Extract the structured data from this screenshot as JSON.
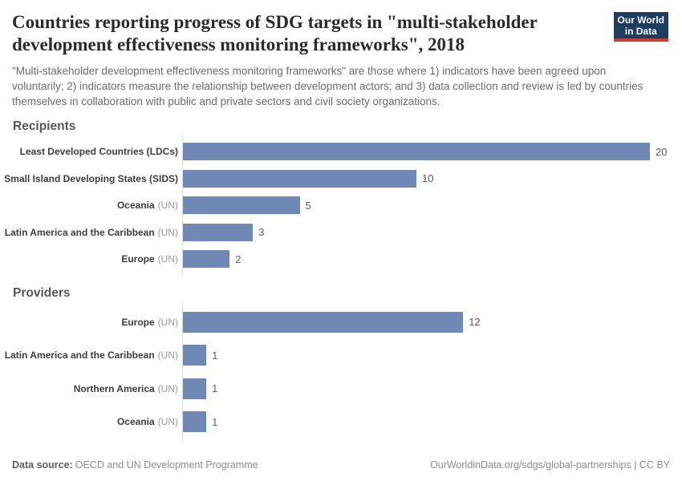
{
  "header": {
    "title": "Countries reporting progress of SDG targets in \"multi-stakeholder development effectiveness monitoring frameworks\", 2018",
    "subtitle": "\"Multi-stakeholder development effectiveness monitoring frameworks\" are those where 1) indicators have been agreed upon voluntarily; 2) indicators measure the relationship between development actors; and 3) data collection and review is led by countries themselves in collaboration with public and private sectors and civil society organizations."
  },
  "logo": {
    "line1": "Our World",
    "line2": "in Data",
    "bg_color": "#1d3d63",
    "stripe_color": "#d23b33"
  },
  "chart_data": [
    {
      "type": "bar",
      "orientation": "horizontal",
      "title": "Recipients",
      "categories": [
        "Least Developed Countries (LDCs)",
        "Small Island Developing States (SIDS)",
        "Oceania (UN)",
        "Latin America and the Caribbean (UN)",
        "Europe (UN)"
      ],
      "names": [
        "Least Developed Countries (LDCs)",
        "Small Island Developing States (SIDS)",
        "Oceania",
        "Latin America and the Caribbean",
        "Europe"
      ],
      "suffixes": [
        "",
        "",
        "(UN)",
        "(UN)",
        "(UN)"
      ],
      "values": [
        20,
        10,
        5,
        3,
        2
      ],
      "xlim": [
        0,
        20
      ],
      "bar_color": "#7088b4",
      "value_labels_shown": true,
      "grid": false,
      "legend": "none"
    },
    {
      "type": "bar",
      "orientation": "horizontal",
      "title": "Providers",
      "categories": [
        "Europe (UN)",
        "Latin America and the Caribbean (UN)",
        "Northern America (UN)",
        "Oceania (UN)"
      ],
      "names": [
        "Europe",
        "Latin America and the Caribbean",
        "Northern America",
        "Oceania"
      ],
      "suffixes": [
        "(UN)",
        "(UN)",
        "(UN)",
        "(UN)"
      ],
      "values": [
        12,
        1,
        1,
        1
      ],
      "xlim": [
        0,
        20
      ],
      "bar_color": "#7088b4",
      "value_labels_shown": true,
      "grid": false,
      "legend": "none"
    }
  ],
  "footer": {
    "data_source_label": "Data source:",
    "data_source_value": "OECD and UN Development Programme",
    "attribution": "OurWorldinData.org/sdgs/global-partnerships | CC BY"
  }
}
